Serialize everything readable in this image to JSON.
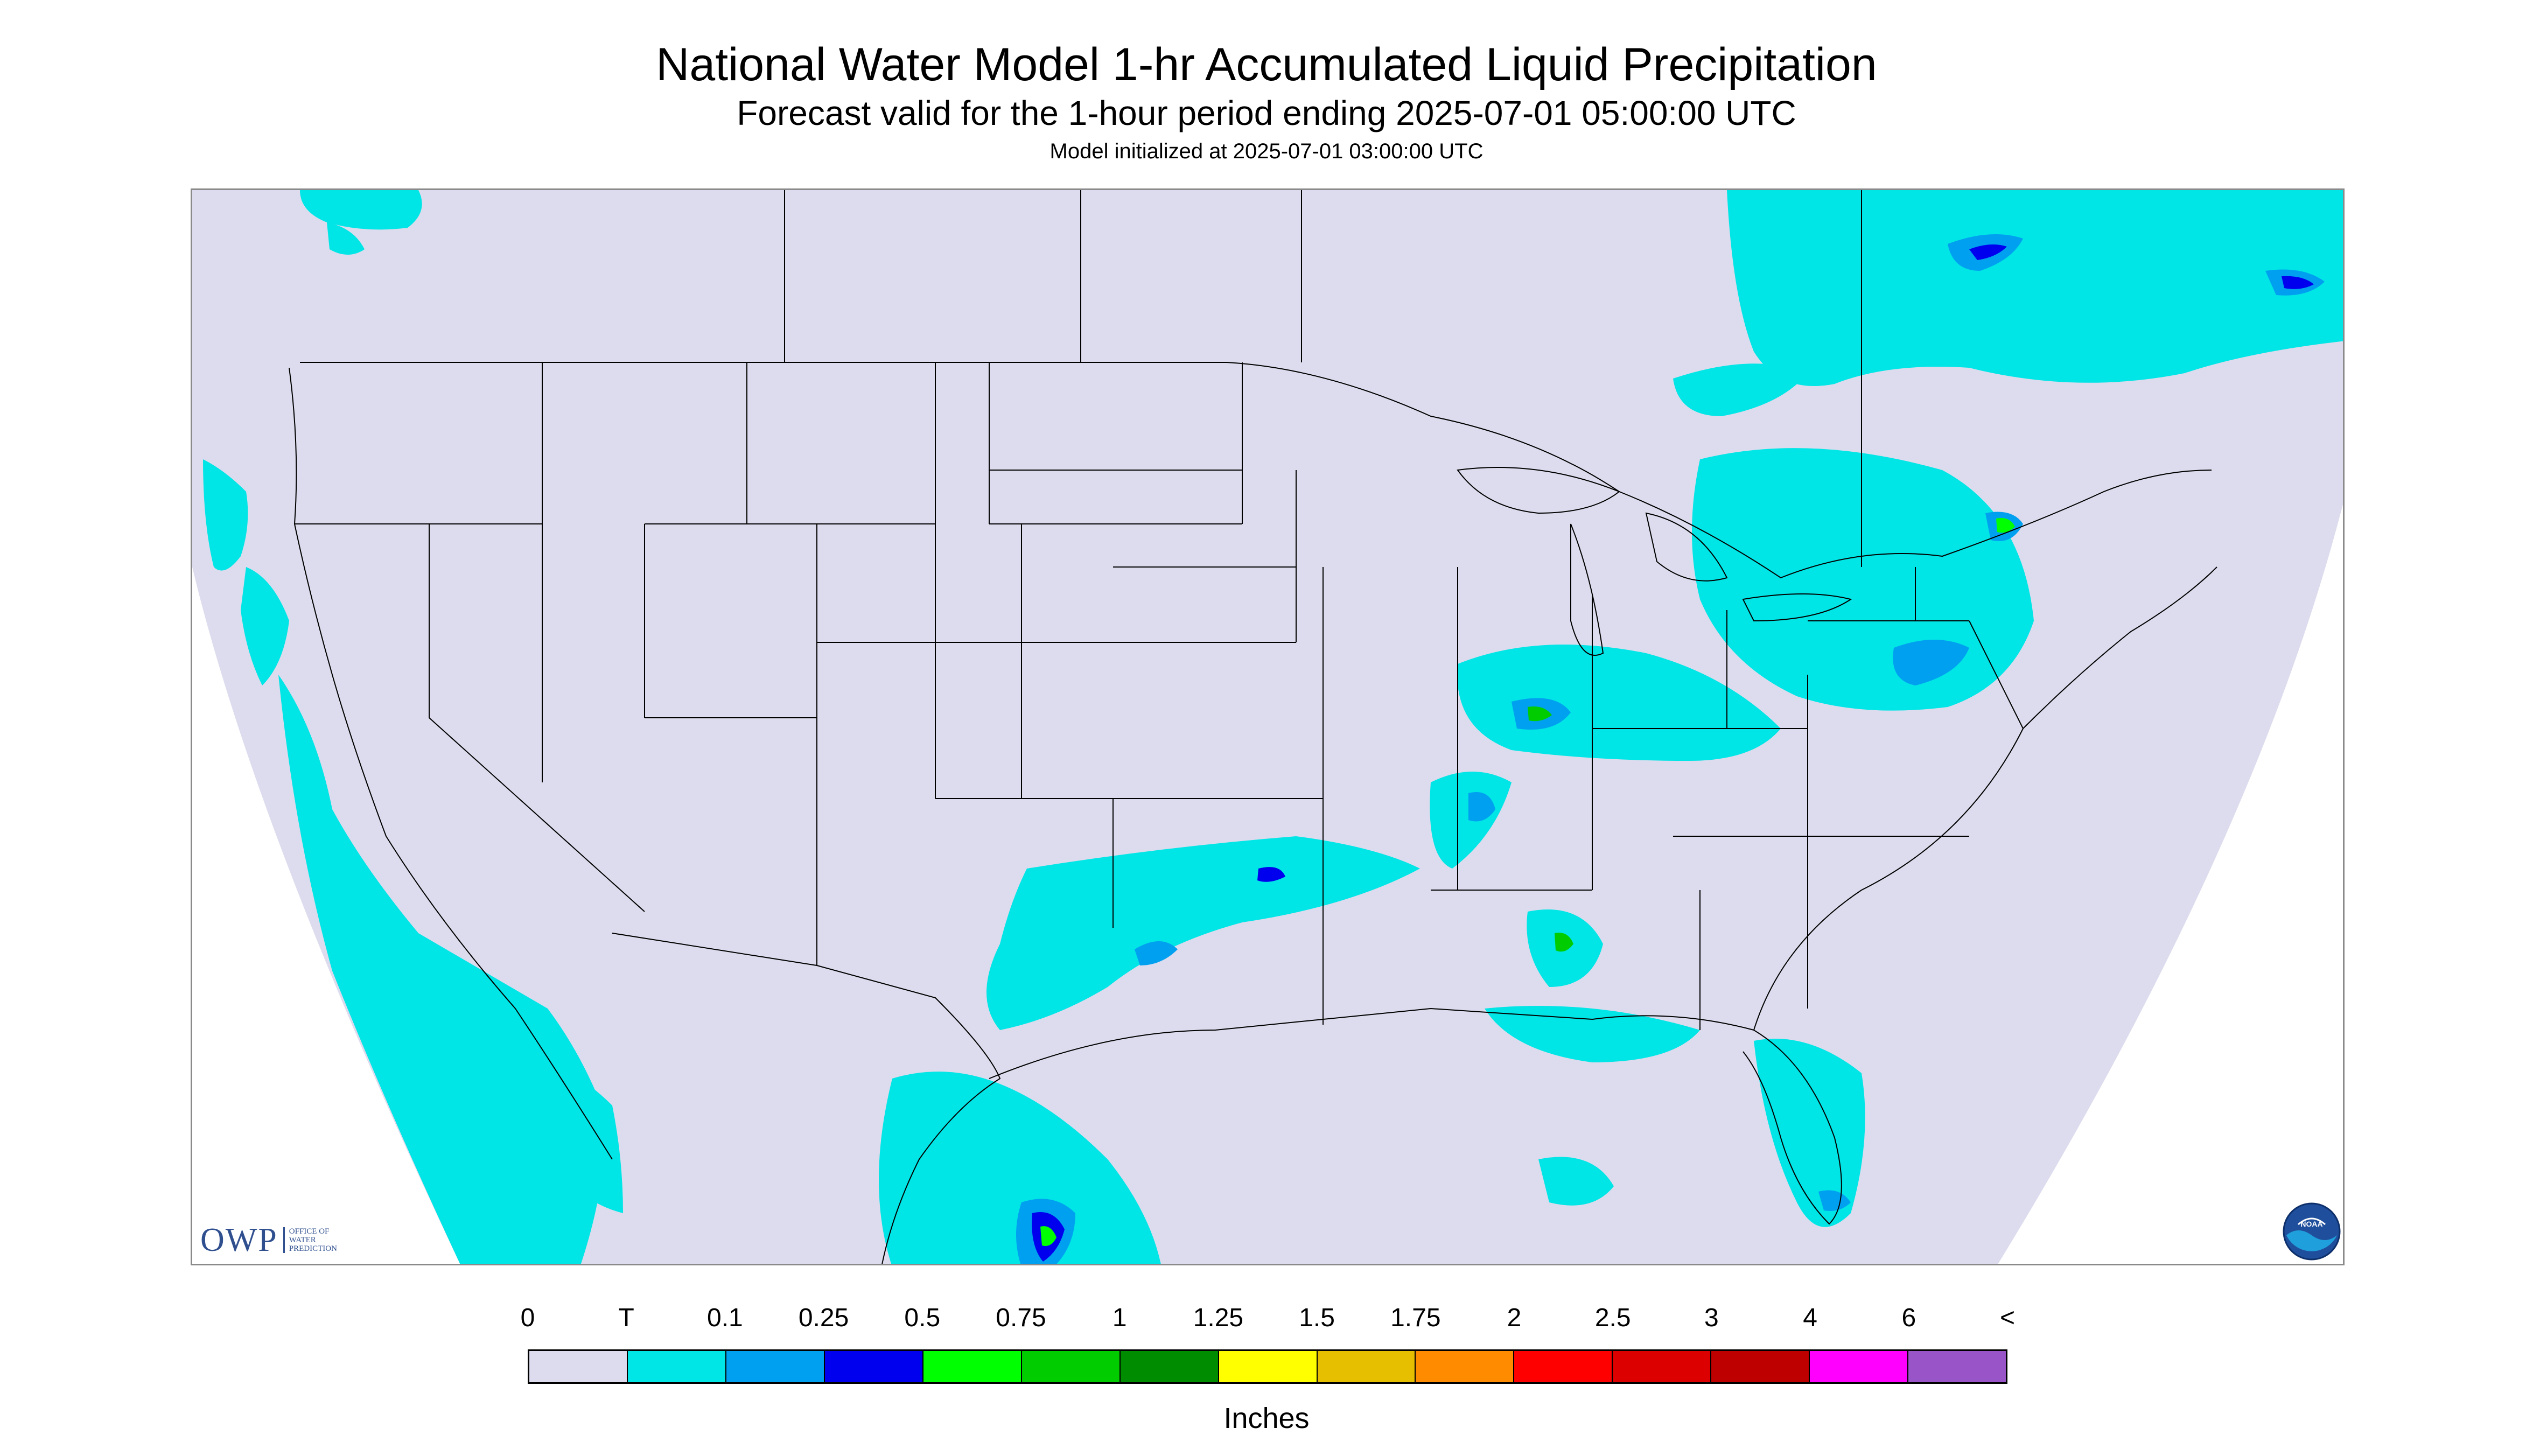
{
  "header": {
    "title": "National Water Model 1-hr Accumulated Liquid Precipitation",
    "subtitle": "Forecast valid for the 1-hour period ending 2025-07-01 05:00:00 UTC",
    "init": "Model initialized at 2025-07-01 03:00:00 UTC"
  },
  "map": {
    "background_color": "#dcdcee",
    "outside_color": "#ffffff",
    "boundary_color": "#000000",
    "precip_areas": [
      {
        "region": "Pacific Northwest coast",
        "level": "T"
      },
      {
        "region": "California coast / offshore",
        "level": "T"
      },
      {
        "region": "Baja California offshore",
        "level": "T"
      },
      {
        "region": "Southern Canada / Great Lakes",
        "level": "0.1"
      },
      {
        "region": "Quebec",
        "level": "0.25"
      },
      {
        "region": "Ohio Valley / Missouri",
        "level": "0.75"
      },
      {
        "region": "Texas / Oklahoma",
        "level": "0.25"
      },
      {
        "region": "Northeastern Mexico",
        "level": "0.75"
      },
      {
        "region": "Pennsylvania / New York",
        "level": "0.5"
      },
      {
        "region": "Alabama",
        "level": "0.75"
      },
      {
        "region": "Florida",
        "level": "0.5"
      }
    ],
    "logo_left": {
      "mark": "OWP",
      "line1": "OFFICE OF",
      "line2": "WATER",
      "line3": "PREDICTION"
    },
    "logo_right": {
      "name": "NOAA"
    }
  },
  "legend": {
    "labels": [
      "0",
      "T",
      "0.1",
      "0.25",
      "0.5",
      "0.75",
      "1",
      "1.25",
      "1.5",
      "1.75",
      "2",
      "2.5",
      "3",
      "4",
      "6",
      "<"
    ],
    "colors": [
      "#dcdcee",
      "#00e5e5",
      "#00a0f0",
      "#0000ee",
      "#00ff00",
      "#00cc00",
      "#008c00",
      "#ffff00",
      "#e5bf00",
      "#ff8c00",
      "#ff0000",
      "#dd0000",
      "#be0000",
      "#ff00ff",
      "#9955c8"
    ],
    "units": "Inches"
  }
}
